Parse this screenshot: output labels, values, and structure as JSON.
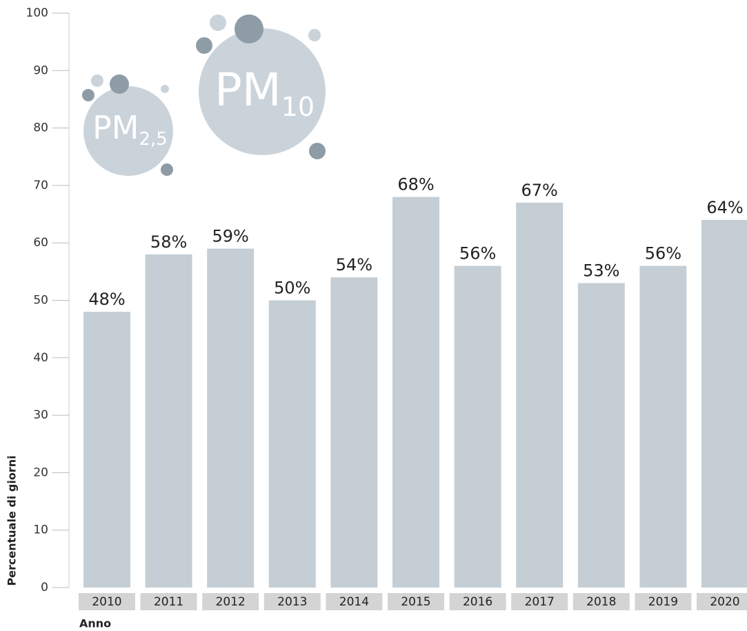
{
  "chart_data": {
    "type": "bar",
    "x_label": "Anno",
    "y_label": "Percentuale di giorni",
    "categories": [
      "2010",
      "2011",
      "2012",
      "2013",
      "2014",
      "2015",
      "2016",
      "2017",
      "2018",
      "2019",
      "2020"
    ],
    "values": [
      48,
      58,
      59,
      50,
      54,
      68,
      56,
      67,
      53,
      56,
      64
    ],
    "value_labels": [
      "48%",
      "58%",
      "59%",
      "50%",
      "54%",
      "68%",
      "56%",
      "67%",
      "53%",
      "56%",
      "64%"
    ],
    "color": "#c5ced5",
    "ylim": [
      0,
      100
    ],
    "yticks": [
      0,
      10,
      20,
      30,
      40,
      50,
      60,
      70,
      80,
      90,
      100
    ],
    "annotations": [
      {
        "text": "PM",
        "subscript": "2,5"
      },
      {
        "text": "PM",
        "subscript": "10"
      }
    ]
  }
}
